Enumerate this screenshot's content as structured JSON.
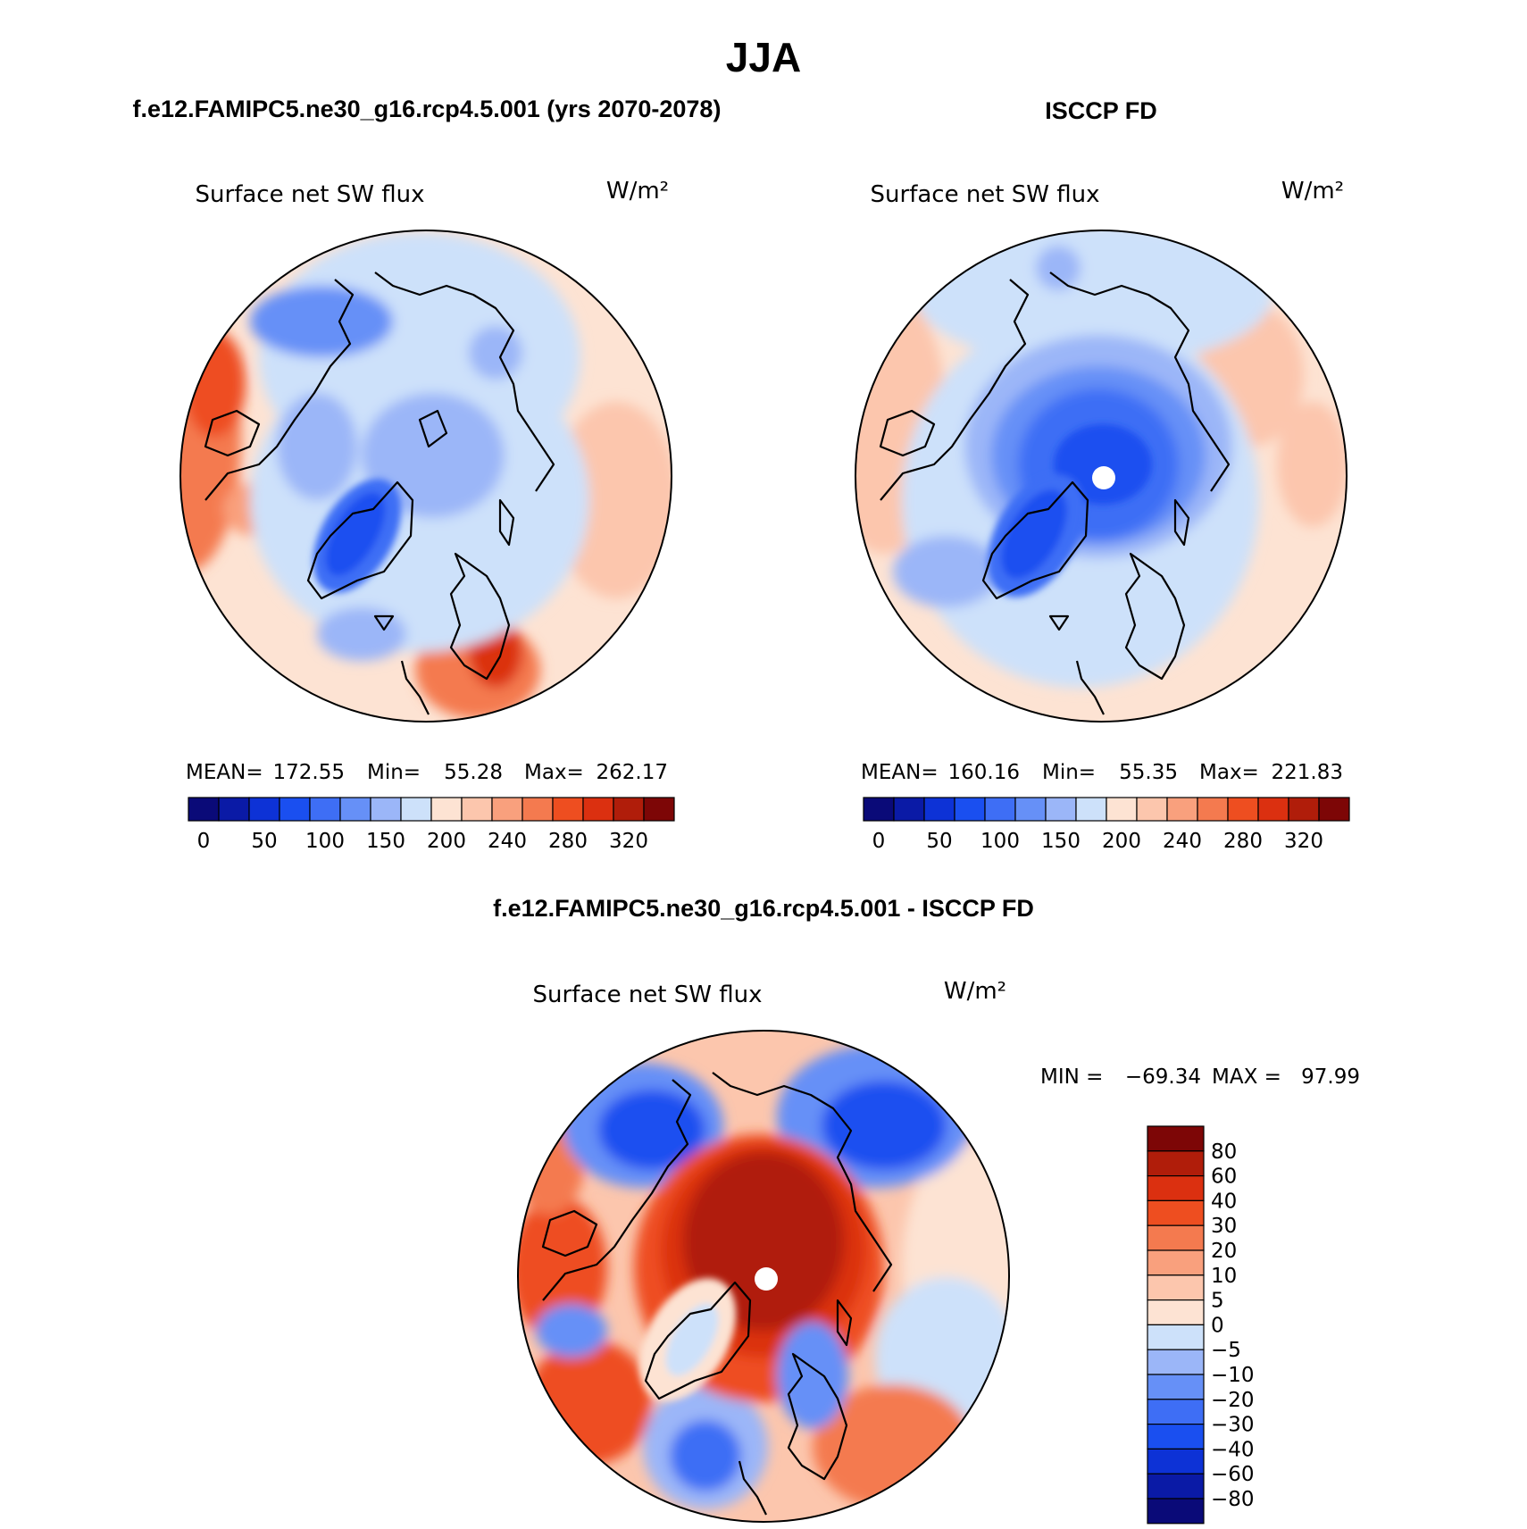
{
  "figure": {
    "title": "JJA",
    "panel_left_header": "f.e12.FAMIPC5.ne30_g16.rcp4.5.001 (yrs 2070-2078)",
    "panel_right_header": "ISCCP FD",
    "diff_header": "f.e12.FAMIPC5.ne30_g16.rcp4.5.001 - ISCCP FD"
  },
  "chart_data": [
    {
      "type": "heatmap",
      "projection": "north-polar-stereographic",
      "title": "Surface net SW flux",
      "units": "W/m²",
      "stats": {
        "mean_label": "MEAN=",
        "mean": "172.55",
        "min_label": "Min=",
        "min": "55.28",
        "max_label": "Max=",
        "max": "262.17"
      },
      "colorbar": {
        "orientation": "horizontal",
        "tick_labels": [
          "0",
          "50",
          "100",
          "150",
          "200",
          "240",
          "280",
          "320"
        ],
        "colors": [
          "#0a0a78",
          "#0a1aa6",
          "#0d32d6",
          "#1a4ff0",
          "#3e6ef5",
          "#6690f7",
          "#9bb6f8",
          "#cde1fa",
          "#fde3d3",
          "#fcc6ad",
          "#f9a07d",
          "#f47a4f",
          "#ee4e20",
          "#db3010",
          "#b01d0a",
          "#7d0606"
        ]
      },
      "field_summary": {
        "greenland": "low (50-100)",
        "arctic_ocean": "100-150",
        "siberia": "100-150",
        "north_pacific": "200-280",
        "north_atlantic": "200-240",
        "scandinavia_europe": "240-320"
      }
    },
    {
      "type": "heatmap",
      "projection": "north-polar-stereographic",
      "title": "Surface net SW flux",
      "units": "W/m²",
      "stats": {
        "mean_label": "MEAN=",
        "mean": "160.16",
        "min_label": "Min=",
        "min": "55.35",
        "max_label": "Max=",
        "max": "221.83"
      },
      "colorbar": {
        "orientation": "horizontal",
        "tick_labels": [
          "0",
          "50",
          "100",
          "150",
          "200",
          "240",
          "280",
          "320"
        ],
        "colors": [
          "#0a0a78",
          "#0a1aa6",
          "#0d32d6",
          "#1a4ff0",
          "#3e6ef5",
          "#6690f7",
          "#9bb6f8",
          "#cde1fa",
          "#fde3d3",
          "#fcc6ad",
          "#f9a07d",
          "#f47a4f",
          "#ee4e20",
          "#db3010",
          "#b01d0a",
          "#7d0606"
        ]
      },
      "field_summary": {
        "north_pole": "50-75",
        "greenland": "50-100",
        "arctic_ocean": "75-125",
        "siberia": "150-200",
        "north_pacific": "200-240",
        "north_atlantic": "150-200"
      }
    },
    {
      "type": "heatmap",
      "projection": "north-polar-stereographic",
      "title": "Surface net SW flux",
      "units": "W/m²",
      "stats": {
        "min_label": "MIN =",
        "min": "−69.34",
        "max_label": "MAX =",
        "max": "97.99"
      },
      "colorbar": {
        "orientation": "vertical",
        "tick_labels": [
          "80",
          "60",
          "40",
          "30",
          "20",
          "10",
          "5",
          "0",
          "−5",
          "−10",
          "−20",
          "−30",
          "−40",
          "−60",
          "−80"
        ],
        "colors": [
          "#7d0606",
          "#b01d0a",
          "#db3010",
          "#ee4e20",
          "#f47a4f",
          "#f9a07d",
          "#fcc6ad",
          "#fde3d3",
          "#cde1fa",
          "#9bb6f8",
          "#6690f7",
          "#3e6ef5",
          "#1a4ff0",
          "#0d32d6",
          "#0a1aa6",
          "#0a0a78"
        ]
      },
      "field_summary": {
        "arctic_ocean": "60-80",
        "greenland": "-10 to 20",
        "siberia": "-60 to -30",
        "north_pacific": "10-30",
        "north_atlantic": "20-40",
        "scandinavia": "-20 to 10"
      }
    }
  ]
}
